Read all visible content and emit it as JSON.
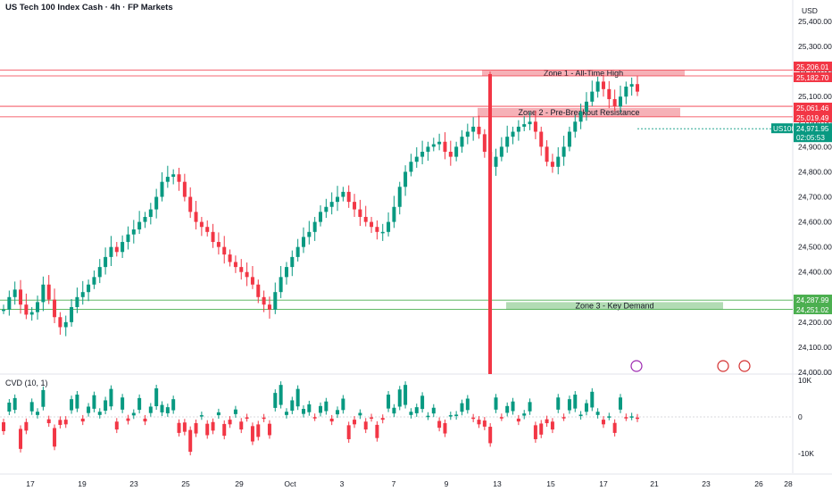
{
  "header": {
    "title": "US Tech 100 Index Cash · 4h · FP Markets",
    "currency": "USD"
  },
  "colors": {
    "up": "#089981",
    "down": "#f23645",
    "resistance": "#f23645",
    "demand": "#4caf50",
    "zone_fill_red": "#f5a3aa",
    "zone_fill_green": "#a5d6a7"
  },
  "chart_data": [
    {
      "type": "candlestick",
      "title": "US Tech 100 Index Cash · 4h · FP Markets",
      "ylim": [
        24000,
        25450
      ],
      "y_ticks": [
        "25,400.00",
        "25,300.00",
        "25,200.00",
        "25,100.00",
        "25,000.00",
        "24,900.00",
        "24,800.00",
        "24,700.00",
        "24,600.00",
        "24,500.00",
        "24,400.00",
        "24,300.00",
        "24,200.00",
        "24,100.00",
        "24,000.00"
      ],
      "x_tick_labels": [
        "17",
        "19",
        "23",
        "25",
        "29",
        "Oct",
        "3",
        "7",
        "9",
        "13",
        "15",
        "17",
        "21",
        "23",
        "26",
        "28"
      ],
      "price_line": {
        "symbol": "US100",
        "value": "24,971.95",
        "countdown": "02:05:53"
      },
      "levels": [
        {
          "label": "25,206.01",
          "value": 25206.01,
          "color": "#f23645"
        },
        {
          "label": "25,182.70",
          "value": 25182.7,
          "color": "#f23645"
        },
        {
          "label": "25,061.46",
          "value": 25061.46,
          "color": "#f23645"
        },
        {
          "label": "25,019.49",
          "value": 25019.49,
          "color": "#f23645"
        },
        {
          "label": "24,287.99",
          "value": 24287.99,
          "color": "#4caf50"
        },
        {
          "label": "24,251.02",
          "value": 24251.02,
          "color": "#4caf50"
        }
      ],
      "zones": [
        {
          "label": "Zone 1 - All-Time High",
          "from": 25182.7,
          "to": 25206.01,
          "color": "red"
        },
        {
          "label": "Zone 2 - Pre-Breakout Resistance",
          "from": 25019.49,
          "to": 25055,
          "color": "red"
        },
        {
          "label": "Zone 3 - Key Demand",
          "from": 24251.02,
          "to": 24280,
          "color": "green"
        }
      ],
      "events": [
        "lightning-icon",
        "us-flag-icon",
        "us-flag-icon"
      ],
      "price_path": [
        [
          24250,
          24300,
          24330,
          24270,
          24230,
          24240,
          24280,
          24350,
          24290,
          24220,
          24180,
          24200,
          24260,
          24300,
          24320,
          24350,
          24380,
          24420,
          24460,
          24500,
          24480,
          24520,
          24550,
          24570,
          24600,
          24620,
          24650,
          24700,
          24760,
          24780,
          24790,
          24760,
          24700,
          24640,
          24600,
          24580,
          24560,
          24520,
          24500,
          24470,
          24440,
          24420,
          24400,
          24380,
          24350,
          24300,
          24270,
          24250,
          24320,
          24380,
          24420,
          24460,
          24500,
          24540,
          24560,
          24600,
          24640,
          24660,
          24680,
          24700,
          24720,
          24680,
          24650,
          24620,
          24600,
          24580,
          24560,
          24560,
          24600,
          24660,
          24740,
          24800,
          24840,
          24860,
          24880,
          24900,
          24910,
          24920,
          24880,
          24860,
          24900,
          24940,
          24960,
          24980,
          24950,
          24880,
          24820,
          24860,
          24900,
          24940,
          24960,
          24980,
          24990,
          25000,
          24960,
          24900,
          24840,
          24820,
          24860,
          24900,
          24960,
          25000,
          25040,
          25080,
          25120,
          25160,
          25130,
          25090,
          25060,
          25100,
          25140,
          25150,
          25120
        ]
      ],
      "cvd": {
        "label": "CVD (10, 1)",
        "y_ticks": [
          "10K",
          "0",
          "-10K"
        ]
      }
    }
  ]
}
